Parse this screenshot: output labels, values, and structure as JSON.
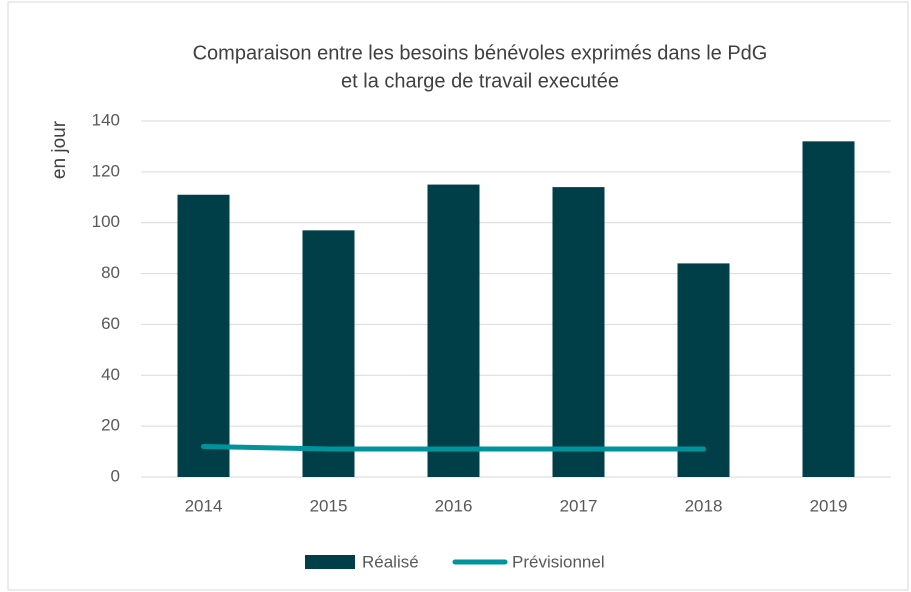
{
  "chart_data": {
    "type": "bar-line",
    "title": [
      "Comparaison entre les besoins bénévoles exprimés dans le PdG",
      "et la charge de travail executée"
    ],
    "y_label": "en jour",
    "categories": [
      "2014",
      "2015",
      "2016",
      "2017",
      "2018",
      "2019"
    ],
    "series": [
      {
        "name": "Réalisé",
        "type": "bar",
        "color": "#003f48",
        "values": [
          111,
          97,
          115,
          114,
          84,
          132
        ]
      },
      {
        "name": "Prévisionnel",
        "type": "line",
        "color": "#00939e",
        "values": [
          12,
          11,
          11,
          11,
          11,
          null
        ]
      }
    ],
    "ylim": [
      0,
      140
    ],
    "yticks": [
      0,
      20,
      40,
      60,
      80,
      100,
      120,
      140
    ],
    "grid": true,
    "legend": "bottom"
  }
}
